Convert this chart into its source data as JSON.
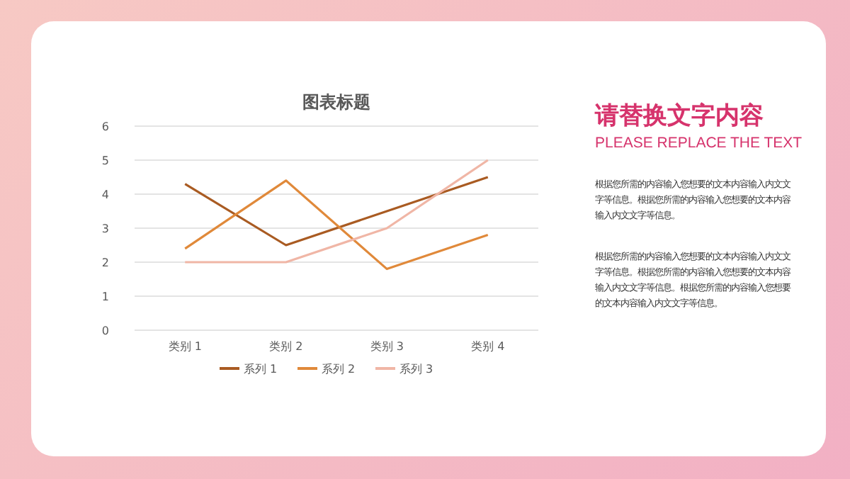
{
  "chart_data": [
    {
      "type": "line",
      "title": "图表标题",
      "categories": [
        "类别 1",
        "类别 2",
        "类别 3",
        "类别 4"
      ],
      "ylim": [
        0,
        6
      ],
      "yticks": [
        0,
        1,
        2,
        3,
        4,
        5,
        6
      ],
      "grid": "y",
      "legend": "bottom",
      "line_style": "solid",
      "series": [
        {
          "name": "系列 1",
          "color": "#a95b22",
          "values": [
            4.3,
            2.5,
            3.5,
            4.5
          ]
        },
        {
          "name": "系列 2",
          "color": "#e0893a",
          "values": [
            2.4,
            4.4,
            1.8,
            2.8
          ]
        },
        {
          "name": "系列 3",
          "color": "#f0b6a6",
          "values": [
            2,
            2,
            3,
            5
          ]
        }
      ]
    },
    {
      "type": "other",
      "title": "请替换文字内容",
      "subtitle": "PLEASE REPLACE THE TEXT",
      "annotations": [
        "根据您所需的内容输入您想要的文本内容输入内文文字等信息。根据您所需的内容输入您想要的文本内容输入内文文字等信息。",
        "根据您所需的内容输入您想要的文本内容输入内文文字等信息。根据您所需的内容输入您想要的文本内容输入内文文字等信息。根据您所需的内容输入您想要的文本内容输入内文文字等信息。"
      ]
    }
  ]
}
